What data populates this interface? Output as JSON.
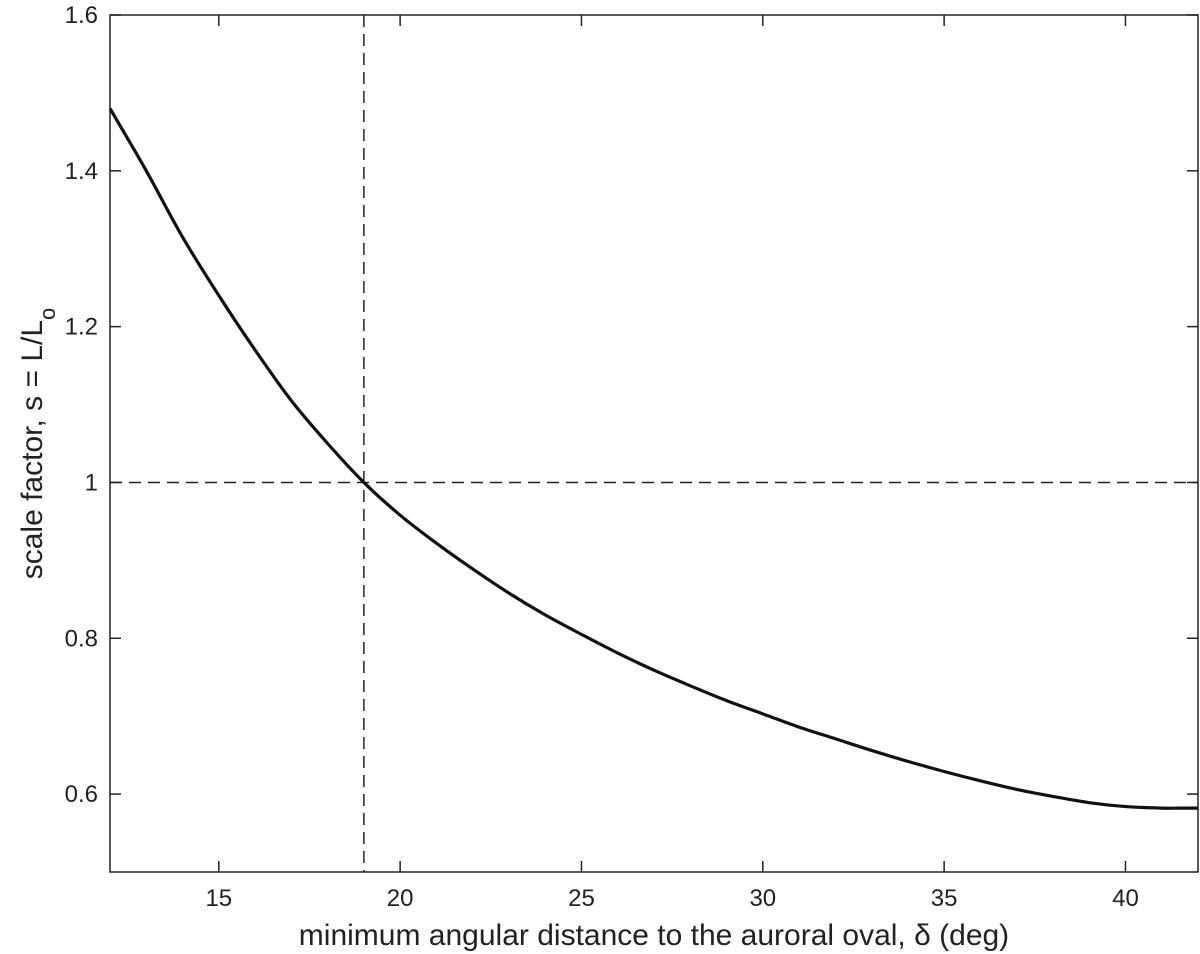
{
  "chart_data": {
    "type": "line",
    "title": "",
    "xlabel": "minimum angular distance to the auroral oval, δ (deg)",
    "ylabel": {
      "main": "scale factor, s = L/L",
      "subscript": "o"
    },
    "xlim": [
      12,
      42
    ],
    "ylim": [
      0.5,
      1.6
    ],
    "x_ticks": [
      15,
      20,
      25,
      30,
      35,
      40
    ],
    "x_tick_labels": [
      "15",
      "20",
      "25",
      "30",
      "35",
      "40"
    ],
    "y_ticks": [
      0.6,
      0.8,
      1.0,
      1.2,
      1.4,
      1.6
    ],
    "y_tick_labels": [
      "0.6",
      "0.8",
      "1",
      "1.2",
      "1.4",
      "1.6"
    ],
    "grid": false,
    "series": [
      {
        "color": "#111111",
        "x": [
          12,
          13,
          14,
          15,
          16,
          17,
          18,
          19,
          20,
          21,
          22,
          23,
          24,
          25,
          26,
          27,
          28,
          29,
          30,
          31,
          32,
          33,
          34,
          35,
          36,
          37,
          38,
          39,
          40,
          41,
          41.5,
          42
        ],
        "y": [
          1.48,
          1.4,
          1.315,
          1.24,
          1.17,
          1.105,
          1.05,
          1.0,
          0.958,
          0.922,
          0.889,
          0.858,
          0.83,
          0.805,
          0.781,
          0.759,
          0.739,
          0.72,
          0.703,
          0.686,
          0.671,
          0.656,
          0.642,
          0.629,
          0.617,
          0.606,
          0.597,
          0.589,
          0.584,
          0.582,
          0.582,
          0.582
        ]
      }
    ],
    "reference_lines": [
      {
        "orientation": "vertical",
        "value": 19,
        "style": "dashed",
        "color": "#222222"
      },
      {
        "orientation": "horizontal",
        "value": 1.0,
        "style": "dashed",
        "color": "#222222"
      }
    ]
  }
}
